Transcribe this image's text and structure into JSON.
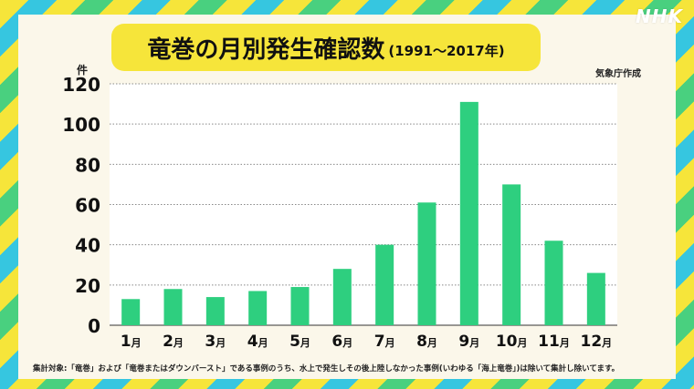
{
  "broadcaster_logo": "NHK",
  "title": {
    "main": "竜巻の月別発生確認数",
    "sub": "(1991〜2017年)"
  },
  "unit_label": "件",
  "source_label": "気象庁作成",
  "footnote": "集計対象:「竜巻」および「竜巻またはダウンバースト」である事例のうち、水上で発生しその後上陸しなかった事例(いわゆる「海上竜巻」)は除いて集計し除いてます。",
  "colors": {
    "bar": "#2ecf7f",
    "title_bg": "#f6e53a",
    "panel_bg": "#fbf7ea",
    "plot_bg": "#ffffff"
  },
  "chart_data": {
    "type": "bar",
    "categories": [
      "1月",
      "2月",
      "3月",
      "4月",
      "5月",
      "6月",
      "7月",
      "8月",
      "9月",
      "10月",
      "11月",
      "12月"
    ],
    "values": [
      13,
      18,
      14,
      17,
      19,
      28,
      40,
      61,
      111,
      70,
      42,
      26
    ],
    "title": "竜巻の月別発生確認数",
    "ylabel": "件",
    "ylim": [
      0,
      120
    ],
    "yticks": [
      0,
      20,
      40,
      60,
      80,
      100,
      120
    ],
    "grid": "horizontal dotted",
    "legend": "none"
  }
}
